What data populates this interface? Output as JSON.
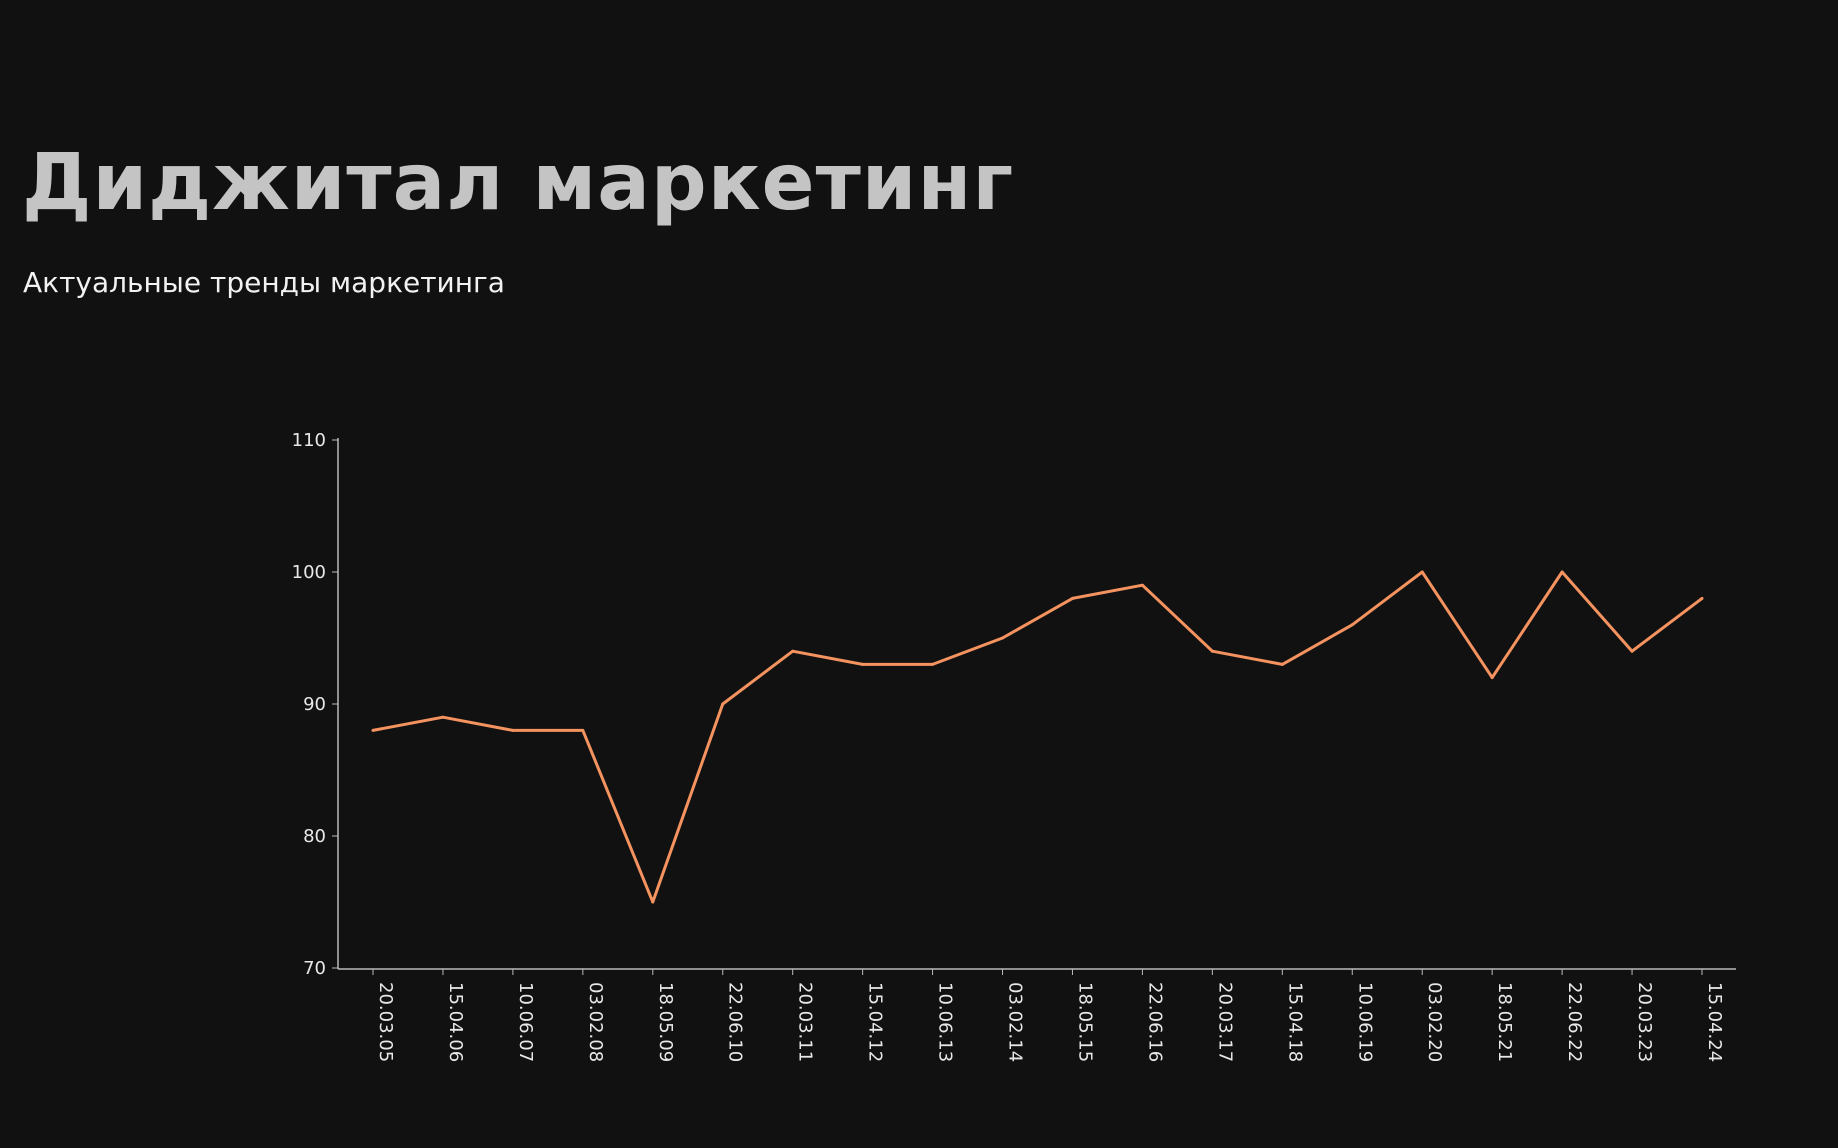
{
  "header": {
    "title": "Диджитал маркетинг",
    "subtitle": "Актуальные тренды маркетинга"
  },
  "chart_data": {
    "type": "line",
    "title": "",
    "xlabel": "",
    "ylabel": "",
    "categories": [
      "20.03.05",
      "15.04.06",
      "10.06.07",
      "03.02.08",
      "18.05.09",
      "22.06.10",
      "20.03.11",
      "15.04.12",
      "10.06.13",
      "03.02.14",
      "18.05.15",
      "22.06.16",
      "20.03.17",
      "15.04.18",
      "10.06.19",
      "03.02.20",
      "18.05.21",
      "22.06.22",
      "20.03.23",
      "15.04.24"
    ],
    "series": [
      {
        "values": [
          88,
          89,
          88,
          88,
          75,
          90,
          94,
          93,
          93,
          95,
          98,
          99,
          94,
          93,
          96,
          100,
          92,
          100,
          94,
          98
        ],
        "color": "#f4935f"
      }
    ],
    "ylim": [
      70,
      110
    ],
    "yticks": [
      "70",
      "80",
      "90",
      "100",
      "110"
    ],
    "grid": false,
    "legend": "none",
    "background": "#111111"
  }
}
